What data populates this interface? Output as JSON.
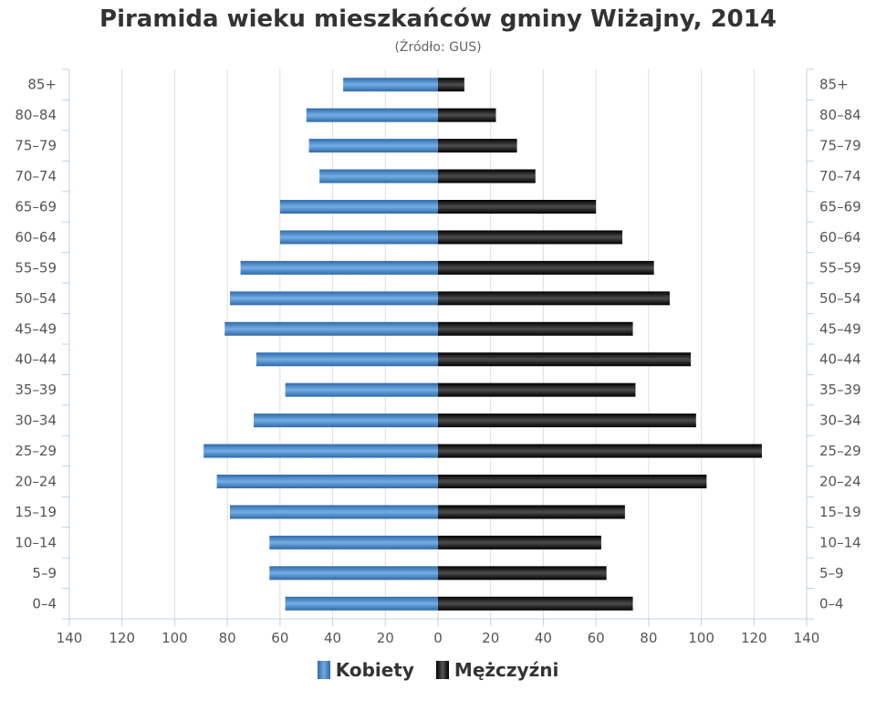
{
  "chart_data": {
    "type": "bar",
    "orientation": "horizontal",
    "title": "Piramida wieku mieszkańców gminy Wiżajny, 2014",
    "subtitle": "(Źródło: GUS)",
    "categories": [
      "85+",
      "80–84",
      "75–79",
      "70–74",
      "65–69",
      "60–64",
      "55–59",
      "50–54",
      "45–49",
      "40–44",
      "35–39",
      "30–34",
      "25–29",
      "20–24",
      "15–19",
      "10–14",
      "5–9",
      "0–4"
    ],
    "series": [
      {
        "name": "Kobiety",
        "color": "#4a86c8",
        "values": [
          36,
          50,
          49,
          45,
          60,
          60,
          75,
          79,
          81,
          69,
          58,
          70,
          89,
          84,
          79,
          64,
          64,
          58
        ]
      },
      {
        "name": "Mężczyźni",
        "color": "#1a1a1a",
        "values": [
          10,
          22,
          30,
          37,
          60,
          70,
          82,
          88,
          74,
          96,
          75,
          98,
          123,
          102,
          71,
          62,
          64,
          74
        ]
      }
    ],
    "xlim": [
      -140,
      140
    ],
    "xticks": [
      "140",
      "120",
      "100",
      "80",
      "60",
      "40",
      "20",
      "0",
      "20",
      "40",
      "60",
      "80",
      "100",
      "120",
      "140"
    ],
    "grid": true,
    "legend_position": "bottom-center"
  }
}
